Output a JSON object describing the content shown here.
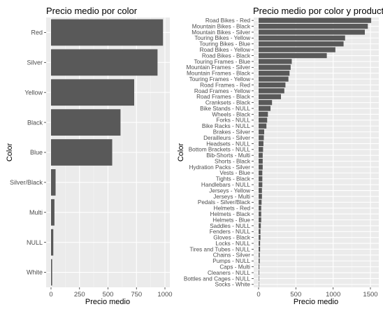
{
  "chart_data": [
    {
      "type": "bar",
      "orientation": "horizontal",
      "title": "Precio medio por color",
      "xlabel": "Precio medio",
      "ylabel": "Color",
      "xlim": [
        0,
        1000
      ],
      "xticks": [
        0,
        250,
        500,
        750,
        1000
      ],
      "grid": true,
      "bar_color": "#595959",
      "panel_color": "#ebebeb",
      "categories": [
        "Red",
        "Silver",
        "Yellow",
        "Black",
        "Blue",
        "Silver/Black",
        "Multi",
        "NULL",
        "White"
      ],
      "values": [
        983,
        935,
        730,
        610,
        537,
        40,
        30,
        20,
        10
      ]
    },
    {
      "type": "bar",
      "orientation": "horizontal",
      "title": "Precio medio por color y producto",
      "xlabel": "Precio medio",
      "ylabel": "Color",
      "xlim": [
        0,
        1500
      ],
      "xticks": [
        0,
        500,
        1000,
        1500
      ],
      "grid": true,
      "bar_color": "#595959",
      "panel_color": "#ebebeb",
      "categories": [
        "Road Bikes - Red",
        "Mountain Bikes - Black",
        "Mountain Bikes - Silver",
        "Touring Bikes - Yellow",
        "Touring Bikes - Blue",
        "Road Bikes - Yellow",
        "Road Bikes - Black",
        "Touring Frames - Blue",
        "Mountain Frames - Silver",
        "Mountain Frames - Black",
        "Touring Frames - Yellow",
        "Road Frames - Red",
        "Road Frames - Yellow",
        "Road Frames - Black",
        "Cranksets - Black",
        "Bike Stands - NULL",
        "Wheels - Black",
        "Forks - NULL",
        "Bike Racks - NULL",
        "Brakes - Silver",
        "Derailleurs - Silver",
        "Headsets - NULL",
        "Bottom Brackets - NULL",
        "Bib-Shorts - Multi",
        "Shorts - Black",
        "Hydration Packs - Silver",
        "Vests - Blue",
        "Tights - Black",
        "Handlebars - NULL",
        "Jerseys - Yellow",
        "Jerseys - Multi",
        "Pedals - Silver/Black",
        "Helmets - Red",
        "Helmets - Black",
        "Helmets - Blue",
        "Saddles - NULL",
        "Fenders - NULL",
        "Gloves - Black",
        "Locks - NULL",
        "Tires and Tubes - NULL",
        "Chains - Silver",
        "Pumps - NULL",
        "Caps - Multi",
        "Cleaners - NULL",
        "Bottles and Cages - NULL",
        "Socks - White"
      ],
      "values": [
        1510,
        1465,
        1425,
        1160,
        1140,
        1030,
        915,
        445,
        430,
        415,
        400,
        360,
        345,
        300,
        180,
        160,
        125,
        115,
        105,
        75,
        70,
        65,
        60,
        55,
        55,
        55,
        50,
        50,
        50,
        45,
        45,
        40,
        35,
        35,
        35,
        30,
        25,
        25,
        20,
        20,
        15,
        15,
        10,
        8,
        6,
        4
      ]
    }
  ]
}
